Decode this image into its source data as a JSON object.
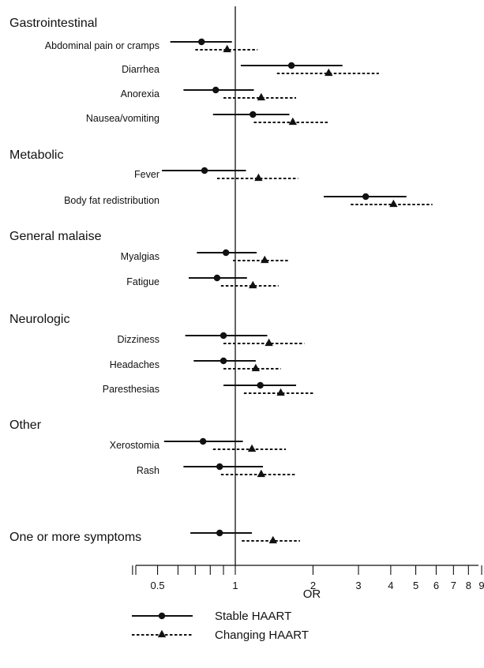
{
  "chart_data": {
    "type": "forest",
    "xlabel": "OR",
    "xscale": "log",
    "xlim": [
      0.34,
      9.4
    ],
    "reference_line": 1,
    "tick_labels": [
      "0.5",
      "1",
      "2",
      "3",
      "4",
      "5",
      "6",
      "7",
      "8",
      "9"
    ],
    "ticks": [
      0.4,
      0.5,
      0.6,
      0.7,
      0.8,
      0.9,
      1,
      2,
      3,
      4,
      5,
      6,
      7,
      8,
      9
    ],
    "series": [
      {
        "name": "Stable HAART",
        "marker": "circle",
        "line": "solid"
      },
      {
        "name": "Changing HAART",
        "marker": "triangle",
        "line": "dashed"
      }
    ],
    "groups": [
      {
        "label": "Gastrointestinal",
        "rows": [
          {
            "label": "Abdominal pain or cramps",
            "stable": {
              "or": 0.74,
              "lo": 0.56,
              "hi": 0.97
            },
            "changing": {
              "or": 0.93,
              "lo": 0.7,
              "hi": 1.22
            }
          },
          {
            "label": "Diarrhea",
            "stable": {
              "or": 1.65,
              "lo": 1.05,
              "hi": 2.6
            },
            "changing": {
              "or": 2.3,
              "lo": 1.45,
              "hi": 3.6
            }
          },
          {
            "label": "Anorexia",
            "stable": {
              "or": 0.84,
              "lo": 0.63,
              "hi": 1.18
            },
            "changing": {
              "or": 1.26,
              "lo": 0.9,
              "hi": 1.72
            }
          },
          {
            "label": "Nausea/vomiting",
            "stable": {
              "or": 1.17,
              "lo": 0.82,
              "hi": 1.62
            },
            "changing": {
              "or": 1.67,
              "lo": 1.18,
              "hi": 2.28
            }
          }
        ]
      },
      {
        "label": "Metabolic",
        "rows": [
          {
            "label": "Fever",
            "stable": {
              "or": 0.76,
              "lo": 0.52,
              "hi": 1.1
            },
            "changing": {
              "or": 1.23,
              "lo": 0.85,
              "hi": 1.75
            }
          },
          {
            "label": "Body fat redistribution",
            "stable": {
              "or": 3.2,
              "lo": 2.2,
              "hi": 4.6
            },
            "changing": {
              "or": 4.1,
              "lo": 2.8,
              "hi": 5.8
            }
          }
        ]
      },
      {
        "label": "General malaise",
        "rows": [
          {
            "label": "Myalgias",
            "stable": {
              "or": 0.92,
              "lo": 0.71,
              "hi": 1.21
            },
            "changing": {
              "or": 1.3,
              "lo": 0.98,
              "hi": 1.62
            }
          },
          {
            "label": "Fatigue",
            "stable": {
              "or": 0.85,
              "lo": 0.66,
              "hi": 1.11
            },
            "changing": {
              "or": 1.17,
              "lo": 0.88,
              "hi": 1.47
            }
          }
        ]
      },
      {
        "label": "Neurologic",
        "rows": [
          {
            "label": "Dizziness",
            "stable": {
              "or": 0.9,
              "lo": 0.64,
              "hi": 1.33
            },
            "changing": {
              "or": 1.35,
              "lo": 0.9,
              "hi": 1.85
            }
          },
          {
            "label": "Headaches",
            "stable": {
              "or": 0.9,
              "lo": 0.69,
              "hi": 1.2
            },
            "changing": {
              "or": 1.2,
              "lo": 0.9,
              "hi": 1.5
            }
          },
          {
            "label": "Paresthesias",
            "stable": {
              "or": 1.25,
              "lo": 0.9,
              "hi": 1.72
            },
            "changing": {
              "or": 1.5,
              "lo": 1.08,
              "hi": 2.0
            }
          }
        ]
      },
      {
        "label": "Other",
        "rows": [
          {
            "label": "Xerostomia",
            "stable": {
              "or": 0.75,
              "lo": 0.53,
              "hi": 1.07
            },
            "changing": {
              "or": 1.16,
              "lo": 0.82,
              "hi": 1.57
            }
          },
          {
            "label": "Rash",
            "stable": {
              "or": 0.87,
              "lo": 0.63,
              "hi": 1.28
            },
            "changing": {
              "or": 1.26,
              "lo": 0.88,
              "hi": 1.73
            }
          }
        ]
      },
      {
        "label": "One or more symptoms",
        "rows": [
          {
            "label": "",
            "stable": {
              "or": 0.87,
              "lo": 0.67,
              "hi": 1.16
            },
            "changing": {
              "or": 1.4,
              "lo": 1.06,
              "hi": 1.78
            }
          }
        ]
      }
    ]
  }
}
